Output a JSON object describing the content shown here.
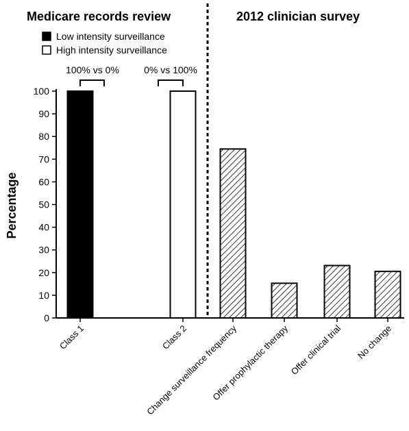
{
  "chart_data": {
    "type": "bar",
    "panels": [
      {
        "title": "Medicare records review",
        "categories": [
          "Class 1",
          "Class 2"
        ],
        "series": [
          {
            "name": "Low intensity surveillance",
            "values": [
              100,
              0
            ],
            "fill": "solid"
          },
          {
            "name": "High intensity surveillance",
            "values": [
              0,
              100
            ],
            "fill": "open"
          }
        ],
        "comparisons": [
          "100% vs 0%",
          "0% vs 100%"
        ]
      },
      {
        "title": "2012 clinician survey",
        "categories": [
          "Change surveillance frequency",
          "Offer prophylactic therapy",
          "Offer clinical trial",
          "No change"
        ],
        "values": [
          74.5,
          15.3,
          23.1,
          20.5
        ],
        "fill": "hatched"
      }
    ],
    "ylabel": "Percentage",
    "ylim": [
      0,
      100
    ],
    "yticks": [
      0,
      10,
      20,
      30,
      40,
      50,
      60,
      70,
      80,
      90,
      100
    ],
    "grid": false,
    "legend": "top-left",
    "colors": {
      "solid": "#000000",
      "open": "#ffffff",
      "line": "#000000"
    }
  }
}
